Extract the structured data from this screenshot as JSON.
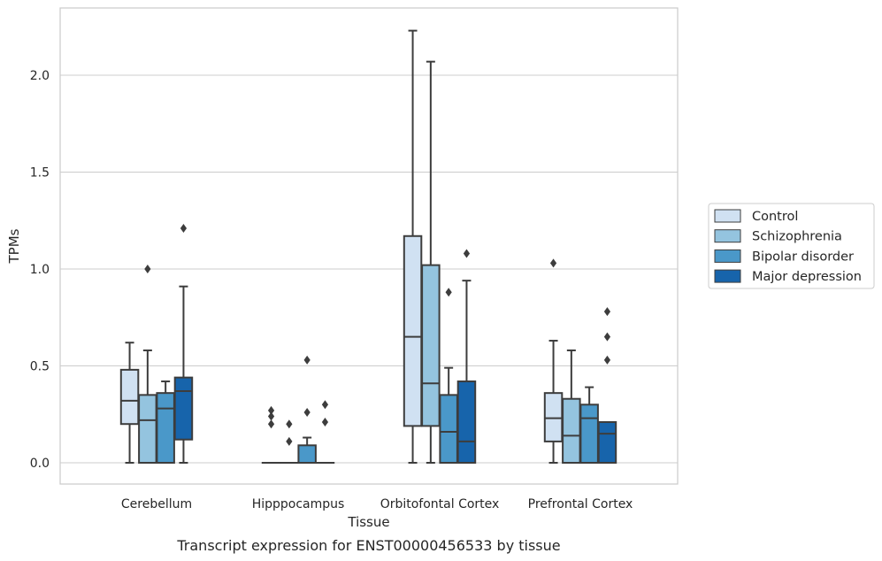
{
  "caption": "Transcript expression for ENST00000456533 by tissue",
  "chart_data": {
    "type": "box",
    "xlabel": "Tissue",
    "ylabel": "TPMs",
    "ylim": [
      -0.11,
      2.35
    ],
    "yticks": [
      "0.0",
      "0.5",
      "1.0",
      "1.5",
      "2.0"
    ],
    "ytick_values": [
      0,
      0.5,
      1.0,
      1.5,
      2.0
    ],
    "grid": "horizontal",
    "legend_position": "right",
    "categories": [
      "Cerebellum",
      "Hipppocampus",
      "Orbitofontal Cortex",
      "Prefrontal Cortex"
    ],
    "series": [
      {
        "name": "Control",
        "color": "#d0e1f2",
        "boxes": [
          {
            "whislo": 0,
            "q1": 0.2,
            "med": 0.32,
            "q3": 0.48,
            "whishi": 0.62,
            "fliers": []
          },
          {
            "whislo": 0,
            "q1": 0,
            "med": 0,
            "q3": 0,
            "whishi": 0,
            "fliers": [
              0.2,
              0.24,
              0.27
            ]
          },
          {
            "whislo": 0,
            "q1": 0.19,
            "med": 0.65,
            "q3": 1.17,
            "whishi": 2.23,
            "fliers": []
          },
          {
            "whislo": 0,
            "q1": 0.11,
            "med": 0.23,
            "q3": 0.36,
            "whishi": 0.63,
            "fliers": [
              1.03
            ]
          }
        ]
      },
      {
        "name": "Schizophrenia",
        "color": "#94c4df",
        "boxes": [
          {
            "whislo": 0,
            "q1": 0,
            "med": 0.22,
            "q3": 0.35,
            "whishi": 0.58,
            "fliers": [
              1.0
            ]
          },
          {
            "whislo": 0,
            "q1": 0,
            "med": 0,
            "q3": 0,
            "whishi": 0,
            "fliers": [
              0.11,
              0.2
            ]
          },
          {
            "whislo": 0,
            "q1": 0.19,
            "med": 0.41,
            "q3": 1.02,
            "whishi": 2.07,
            "fliers": []
          },
          {
            "whislo": 0,
            "q1": 0,
            "med": 0.14,
            "q3": 0.33,
            "whishi": 0.58,
            "fliers": []
          }
        ]
      },
      {
        "name": "Bipolar disorder",
        "color": "#4a98c9",
        "boxes": [
          {
            "whislo": 0,
            "q1": 0,
            "med": 0.28,
            "q3": 0.36,
            "whishi": 0.42,
            "fliers": []
          },
          {
            "whislo": 0,
            "q1": 0,
            "med": 0,
            "q3": 0.09,
            "whishi": 0.13,
            "fliers": [
              0.26,
              0.53
            ]
          },
          {
            "whislo": 0,
            "q1": 0,
            "med": 0.16,
            "q3": 0.35,
            "whishi": 0.49,
            "fliers": [
              0.88
            ]
          },
          {
            "whislo": 0,
            "q1": 0,
            "med": 0.23,
            "q3": 0.3,
            "whishi": 0.39,
            "fliers": []
          }
        ]
      },
      {
        "name": "Major depression",
        "color": "#1764ab",
        "boxes": [
          {
            "whislo": 0,
            "q1": 0.12,
            "med": 0.37,
            "q3": 0.44,
            "whishi": 0.91,
            "fliers": [
              1.21
            ]
          },
          {
            "whislo": 0,
            "q1": 0,
            "med": 0,
            "q3": 0,
            "whishi": 0,
            "fliers": [
              0.21,
              0.3
            ]
          },
          {
            "whislo": 0,
            "q1": 0,
            "med": 0.11,
            "q3": 0.42,
            "whishi": 0.94,
            "fliers": [
              1.08
            ]
          },
          {
            "whislo": 0,
            "q1": 0,
            "med": 0.15,
            "q3": 0.21,
            "whishi": 0.21,
            "fliers": [
              0.53,
              0.65,
              0.78
            ]
          }
        ]
      }
    ]
  }
}
